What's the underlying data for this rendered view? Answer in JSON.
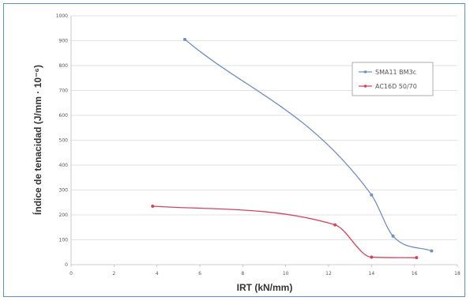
{
  "chart_data": {
    "type": "line",
    "xlabel": "IRT (kN/mm)",
    "ylabel": "Índice de tenacidad (J/mm · 10⁻⁶)",
    "xlim": [
      0,
      18
    ],
    "ylim": [
      0,
      1000
    ],
    "x_ticks": [
      "0",
      "2",
      "4",
      "6",
      "8",
      "10",
      "12",
      "14",
      "16",
      "18"
    ],
    "y_ticks": [
      "0",
      "100",
      "200",
      "300",
      "400",
      "500",
      "600",
      "700",
      "800",
      "900",
      "1000"
    ],
    "grid": true,
    "legend_position": "right",
    "series": [
      {
        "name": "SMA11 BM3c",
        "color": "#6f8fc4",
        "x": [
          5.3,
          14.0,
          15.0,
          16.8
        ],
        "y": [
          905,
          280,
          115,
          55
        ]
      },
      {
        "name": "AC16D 50/70",
        "color": "#d4455c",
        "x": [
          3.8,
          12.3,
          14.0,
          16.1
        ],
        "y": [
          235,
          160,
          30,
          28
        ]
      }
    ]
  }
}
